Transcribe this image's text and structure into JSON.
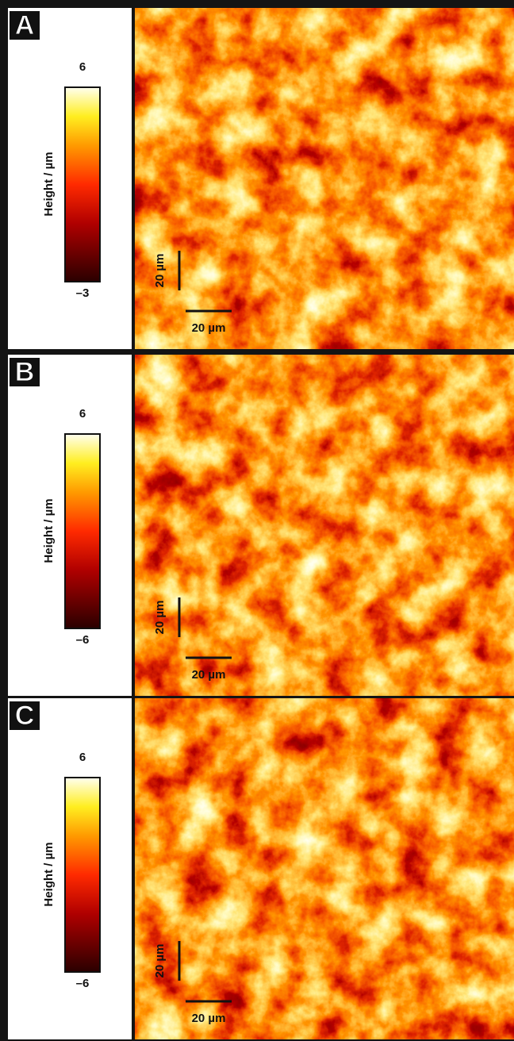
{
  "panels": [
    {
      "label": "A",
      "colorbar": {
        "max": "6",
        "min": "–3",
        "axis_label": "Height / µm"
      },
      "scale_bar": {
        "vertical": "20 µm",
        "horizontal": "20 µm"
      }
    },
    {
      "label": "B",
      "colorbar": {
        "max": "6",
        "min": "–6",
        "axis_label": "Height / µm"
      },
      "scale_bar": {
        "vertical": "20 µm",
        "horizontal": "20 µm"
      }
    },
    {
      "label": "C",
      "colorbar": {
        "max": "6",
        "min": "–6",
        "axis_label": "Height / µm"
      },
      "scale_bar": {
        "vertical": "20 µm",
        "horizontal": "20 µm"
      }
    }
  ]
}
